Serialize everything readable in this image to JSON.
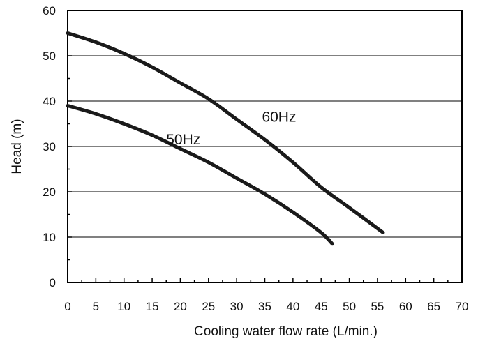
{
  "chart_data": {
    "type": "line",
    "title": "",
    "xlabel": "Cooling water flow rate (L/min.)",
    "ylabel": "Head (m)",
    "xlim": [
      0,
      70
    ],
    "ylim": [
      0,
      60
    ],
    "xticks": [
      "0",
      "5",
      "10",
      "15",
      "20",
      "25",
      "30",
      "35",
      "40",
      "45",
      "50",
      "55",
      "60",
      "65",
      "70"
    ],
    "yticks": [
      "0",
      "10",
      "20",
      "30",
      "40",
      "50",
      "60"
    ],
    "grid": "horizontal",
    "legend": "none",
    "series": [
      {
        "name": "60Hz",
        "x": [
          0,
          5,
          10,
          15,
          20,
          25,
          30,
          35,
          40,
          45,
          50,
          56
        ],
        "y": [
          55,
          53,
          50.5,
          47.5,
          44,
          40.5,
          36,
          31.5,
          26.5,
          21,
          16.5,
          11
        ]
      },
      {
        "name": "50Hz",
        "x": [
          0,
          5,
          10,
          15,
          20,
          25,
          30,
          35,
          40,
          45,
          47
        ],
        "y": [
          39,
          37.2,
          35,
          32.5,
          29.5,
          26.5,
          23,
          19.5,
          15.5,
          11,
          8.5
        ]
      }
    ],
    "colors": {
      "line": "#1a1a1a",
      "grid": "#000000",
      "frame": "#000000"
    }
  }
}
